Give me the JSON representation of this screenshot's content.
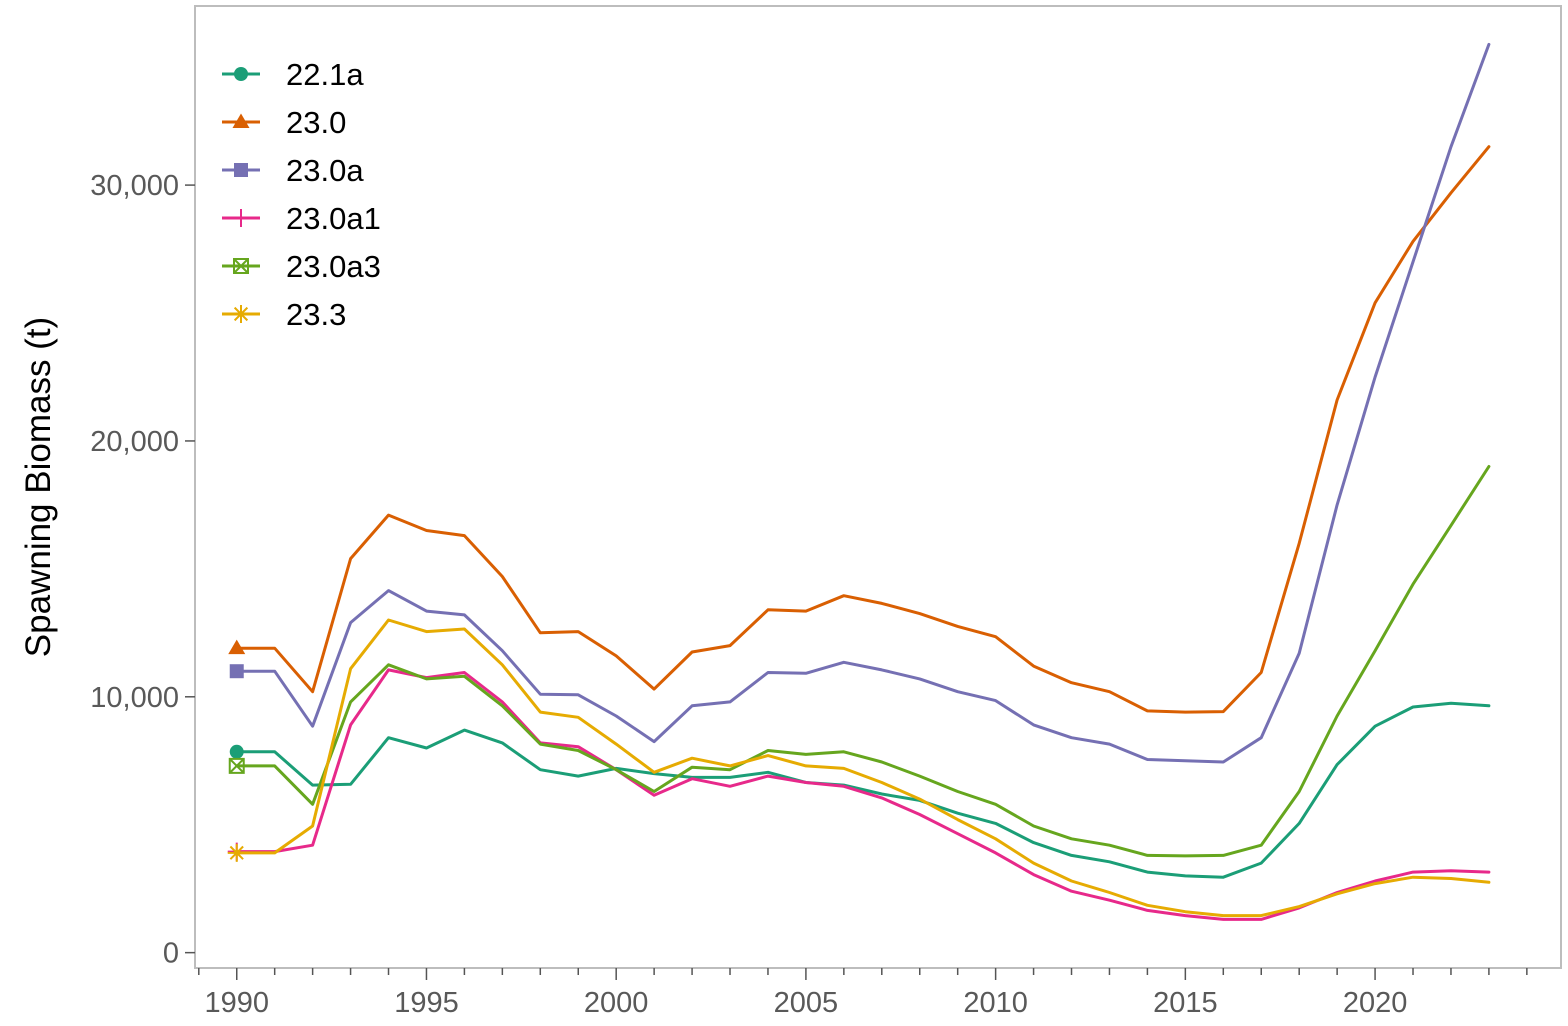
{
  "chart_data": {
    "type": "line",
    "title": "",
    "xlabel": "",
    "ylabel": "Spawning Biomass (t)",
    "xlim": [
      1988.9,
      2024.9
    ],
    "ylim": [
      -600,
      37000
    ],
    "x_ticks": [
      1990,
      1995,
      2000,
      2005,
      2010,
      2015,
      2020
    ],
    "y_ticks": [
      0,
      10000,
      20000,
      30000
    ],
    "y_tick_labels": [
      "0",
      "10,000",
      "20,000",
      "30,000"
    ],
    "grid": false,
    "legend_position": "top-left",
    "x": [
      1990,
      1991,
      1992,
      1993,
      1994,
      1995,
      1996,
      1997,
      1998,
      1999,
      2000,
      2001,
      2002,
      2003,
      2004,
      2005,
      2006,
      2007,
      2008,
      2009,
      2010,
      2011,
      2012,
      2013,
      2014,
      2015,
      2016,
      2017,
      2018,
      2019,
      2020,
      2021,
      2022,
      2023
    ],
    "series": [
      {
        "name": "22.1a",
        "color": "#1b9e77",
        "marker": "circle",
        "values": [
          7850,
          7850,
          6550,
          6580,
          8400,
          8000,
          8700,
          8200,
          7150,
          6900,
          7200,
          7000,
          6850,
          6850,
          7050,
          6650,
          6550,
          6200,
          5950,
          5450,
          5050,
          4300,
          3800,
          3550,
          3150,
          3000,
          2950,
          3500,
          5050,
          7350,
          8850,
          9600,
          9750,
          9650
        ]
      },
      {
        "name": "23.0",
        "color": "#d95f02",
        "marker": "triangle",
        "values": [
          11900,
          11900,
          10200,
          15400,
          17100,
          16500,
          16300,
          14700,
          12500,
          12550,
          11600,
          10300,
          11750,
          12000,
          13400,
          13350,
          13950,
          13650,
          13250,
          12750,
          12350,
          11200,
          10550,
          10200,
          9450,
          9400,
          9420,
          10950,
          16000,
          21600,
          25400,
          27800,
          29700,
          31500
        ]
      },
      {
        "name": "23.0a",
        "color": "#7570b3",
        "marker": "square",
        "values": [
          11000,
          11000,
          8850,
          12900,
          14150,
          13350,
          13200,
          11800,
          10100,
          10080,
          9250,
          8250,
          9650,
          9800,
          10950,
          10920,
          11350,
          11050,
          10700,
          10200,
          9850,
          8900,
          8400,
          8150,
          7550,
          7500,
          7450,
          8400,
          11700,
          17500,
          22500,
          27000,
          31500,
          35500
        ]
      },
      {
        "name": "23.0a1",
        "color": "#e7298a",
        "marker": "plus",
        "values": [
          3950,
          3950,
          4200,
          8900,
          11050,
          10750,
          10950,
          9800,
          8200,
          8050,
          7150,
          6150,
          6800,
          6500,
          6900,
          6650,
          6500,
          6050,
          5400,
          4650,
          3900,
          3050,
          2400,
          2050,
          1650,
          1450,
          1300,
          1300,
          1750,
          2350,
          2800,
          3150,
          3200,
          3150
        ]
      },
      {
        "name": "23.0a3",
        "color": "#66a61e",
        "marker": "boxx",
        "values": [
          7300,
          7300,
          5800,
          9800,
          11250,
          10700,
          10800,
          9650,
          8150,
          7900,
          7150,
          6300,
          7250,
          7150,
          7900,
          7750,
          7850,
          7450,
          6900,
          6300,
          5800,
          4950,
          4450,
          4200,
          3800,
          3780,
          3800,
          4200,
          6300,
          9250,
          11800,
          14400,
          16700,
          19000
        ]
      },
      {
        "name": "23.3",
        "color": "#e6ab02",
        "marker": "asterisk",
        "values": [
          3900,
          3900,
          4950,
          11100,
          13000,
          12550,
          12650,
          11250,
          9400,
          9200,
          8150,
          7050,
          7600,
          7300,
          7700,
          7300,
          7200,
          6650,
          6000,
          5200,
          4450,
          3500,
          2800,
          2350,
          1850,
          1600,
          1450,
          1450,
          1800,
          2300,
          2700,
          2950,
          2900,
          2750
        ]
      }
    ]
  }
}
